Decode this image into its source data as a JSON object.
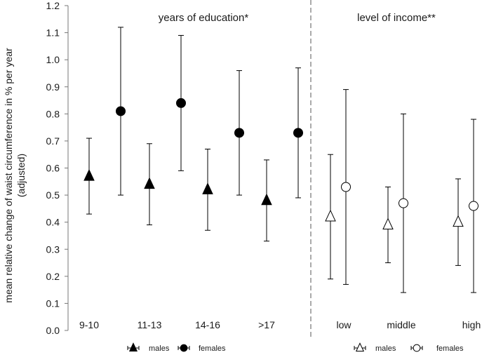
{
  "chart_data": {
    "type": "scatter",
    "ylabel_line1": "mean relative change of waist circumference in % per year",
    "ylabel_line2": "(adjusted)",
    "ylim": [
      0.0,
      1.2
    ],
    "yticks": [
      "0.0",
      "0.1",
      "0.2",
      "0.3",
      "0.4",
      "0.5",
      "0.6",
      "0.7",
      "0.8",
      "0.9",
      "1.0",
      "1.1",
      "1.2"
    ],
    "grid": false,
    "groups": [
      {
        "title": "years of education*",
        "categories": [
          "9-10",
          "11-13",
          "14-16",
          ">17"
        ],
        "series": [
          {
            "name": "males",
            "marker": "filled-triangle",
            "values": [
              0.57,
              0.54,
              0.52,
              0.48
            ],
            "lower": [
              0.43,
              0.39,
              0.37,
              0.33
            ],
            "upper": [
              0.71,
              0.69,
              0.67,
              0.63
            ]
          },
          {
            "name": "females",
            "marker": "filled-circle",
            "values": [
              0.81,
              0.84,
              0.73,
              0.73
            ],
            "lower": [
              0.5,
              0.59,
              0.5,
              0.49
            ],
            "upper": [
              1.12,
              1.09,
              0.96,
              0.97
            ]
          }
        ]
      },
      {
        "title": "level of income**",
        "categories": [
          "low",
          "middle",
          "high"
        ],
        "series": [
          {
            "name": "males",
            "marker": "open-triangle",
            "values": [
              0.42,
              0.39,
              0.4
            ],
            "lower": [
              0.19,
              0.25,
              0.24
            ],
            "upper": [
              0.65,
              0.53,
              0.56
            ]
          },
          {
            "name": "females",
            "marker": "open-circle",
            "values": [
              0.53,
              0.47,
              0.46
            ],
            "lower": [
              0.17,
              0.14,
              0.14
            ],
            "upper": [
              0.89,
              0.8,
              0.78
            ]
          }
        ]
      }
    ],
    "legend_position": "bottom"
  }
}
